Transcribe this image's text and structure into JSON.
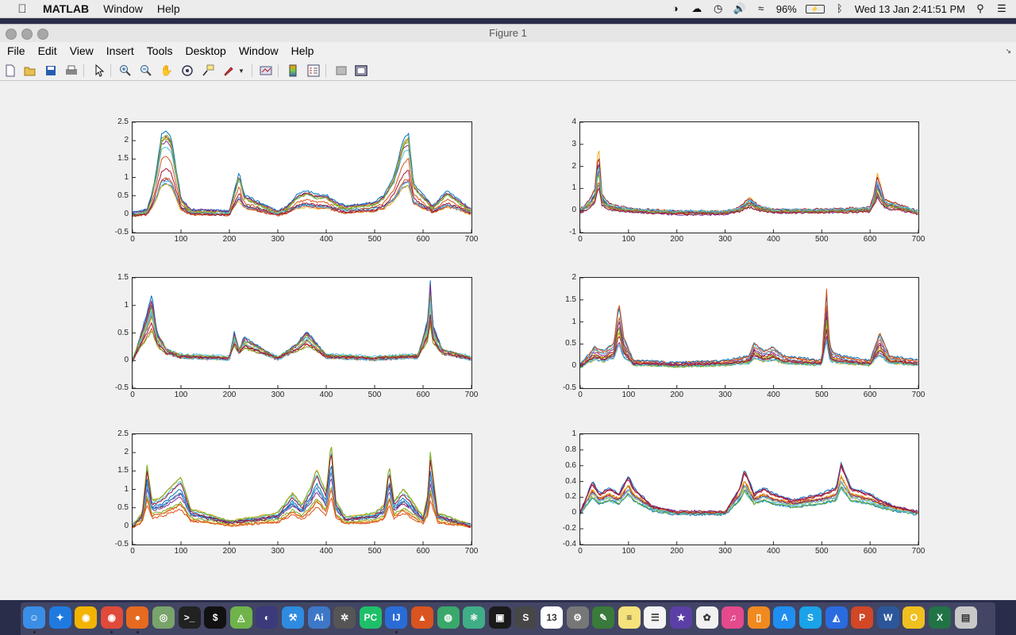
{
  "menubar": {
    "apple_icon": "apple-icon",
    "app_name": "MATLAB",
    "menus": [
      "Window",
      "Help"
    ],
    "status": {
      "battery": "96%",
      "datetime": "Wed 13 Jan  2:41:51 PM"
    }
  },
  "window": {
    "title": "Figure 1",
    "menu": [
      "File",
      "Edit",
      "View",
      "Insert",
      "Tools",
      "Desktop",
      "Window",
      "Help"
    ],
    "toolbar_icons": [
      "new-figure-icon",
      "open-file-icon",
      "save-icon",
      "print-icon",
      "edit-plot-icon",
      "zoom-in-icon",
      "zoom-out-icon",
      "pan-icon",
      "rotate-3d-icon",
      "data-cursor-icon",
      "brush-icon",
      "brush-dropdown-icon",
      "link-plot-icon",
      "insert-colorbar-icon",
      "insert-legend-icon",
      "hide-plot-tools-icon",
      "show-plot-tools-icon"
    ]
  },
  "line_colors": [
    "#0072bd",
    "#d95319",
    "#edb120",
    "#7e2f8e",
    "#77ac30",
    "#4dbeee",
    "#a2142f"
  ],
  "chart_data": [
    {
      "type": "line",
      "x_ticks": [
        "0",
        "100",
        "200",
        "300",
        "400",
        "500",
        "600",
        "700"
      ],
      "xlim": [
        0,
        700
      ],
      "y_ticks": [
        "2.5",
        "2",
        "1.5",
        "1",
        "0.5",
        "0",
        "-0.5"
      ],
      "ylim": [
        -0.5,
        2.5
      ],
      "series": [
        {
          "x": [
            0,
            30,
            40,
            50,
            60,
            70,
            80,
            90,
            100,
            120,
            200,
            220,
            230,
            300,
            320,
            340,
            360,
            380,
            400,
            420,
            440,
            500,
            520,
            540,
            560,
            570,
            580,
            620,
            650,
            700
          ],
          "y": [
            0,
            0.1,
            0.5,
            1.2,
            2.1,
            2.2,
            2.0,
            1.2,
            0.4,
            0.1,
            0.05,
            1.1,
            0.5,
            0.05,
            0.2,
            0.5,
            0.6,
            0.5,
            0.5,
            0.3,
            0.2,
            0.3,
            0.5,
            1.0,
            2.0,
            2.1,
            0.8,
            0.2,
            0.6,
            0.1
          ]
        }
      ]
    },
    {
      "type": "line",
      "x_ticks": [
        "0",
        "100",
        "200",
        "300",
        "400",
        "500",
        "600",
        "700"
      ],
      "xlim": [
        0,
        700
      ],
      "y_ticks": [
        "4",
        "3",
        "2",
        "1",
        "0",
        "-1"
      ],
      "ylim": [
        -1,
        4
      ],
      "series": [
        {
          "x": [
            0,
            20,
            30,
            38,
            45,
            60,
            100,
            200,
            300,
            330,
            350,
            370,
            400,
            500,
            600,
            610,
            615,
            630,
            700
          ],
          "y": [
            0,
            0.5,
            1.0,
            3.0,
            0.8,
            0.3,
            0.05,
            -0.1,
            -0.1,
            0.1,
            0.6,
            0.2,
            0,
            0,
            0.1,
            1.0,
            1.7,
            0.5,
            -0.1
          ]
        }
      ]
    },
    {
      "type": "line",
      "x_ticks": [
        "0",
        "100",
        "200",
        "300",
        "400",
        "500",
        "600",
        "700"
      ],
      "xlim": [
        0,
        700
      ],
      "y_ticks": [
        "1.5",
        "1",
        "0.5",
        "0",
        "-0.5"
      ],
      "ylim": [
        -0.5,
        1.5
      ],
      "series": [
        {
          "x": [
            0,
            15,
            30,
            40,
            50,
            70,
            100,
            200,
            210,
            220,
            230,
            300,
            340,
            360,
            380,
            400,
            500,
            590,
            610,
            615,
            620,
            640,
            700
          ],
          "y": [
            0,
            0.4,
            0.8,
            1.1,
            0.5,
            0.2,
            0.1,
            0.05,
            0.5,
            0.2,
            0.4,
            0.05,
            0.3,
            0.5,
            0.3,
            0.1,
            0.05,
            0.1,
            0.7,
            1.35,
            0.6,
            0.2,
            0.05
          ]
        }
      ]
    },
    {
      "type": "line",
      "x_ticks": [
        "0",
        "100",
        "200",
        "300",
        "400",
        "500",
        "600",
        "700"
      ],
      "xlim": [
        0,
        700
      ],
      "y_ticks": [
        "2",
        "1.5",
        "1",
        "0.5",
        "0",
        "-0.5"
      ],
      "ylim": [
        -0.5,
        2
      ],
      "series": [
        {
          "x": [
            0,
            30,
            50,
            70,
            80,
            90,
            110,
            200,
            300,
            350,
            360,
            380,
            400,
            420,
            500,
            510,
            515,
            520,
            540,
            600,
            620,
            640,
            700
          ],
          "y": [
            0,
            0.4,
            0.3,
            0.5,
            1.35,
            0.6,
            0.1,
            0.05,
            0.1,
            0.2,
            0.5,
            0.3,
            0.4,
            0.2,
            0.1,
            1.6,
            0.6,
            0.3,
            0.2,
            0.1,
            0.7,
            0.2,
            0.1
          ]
        }
      ]
    },
    {
      "type": "line",
      "x_ticks": [
        "0",
        "100",
        "200",
        "300",
        "400",
        "500",
        "600",
        "700"
      ],
      "xlim": [
        0,
        700
      ],
      "y_ticks": [
        "2.5",
        "2",
        "1.5",
        "1",
        "0.5",
        "0",
        "-0.5"
      ],
      "ylim": [
        -0.5,
        2.5
      ],
      "series": [
        {
          "x": [
            0,
            20,
            30,
            40,
            60,
            100,
            120,
            200,
            300,
            330,
            350,
            370,
            380,
            400,
            410,
            420,
            440,
            500,
            520,
            530,
            540,
            560,
            600,
            610,
            615,
            630,
            700
          ],
          "y": [
            0,
            0.3,
            1.5,
            0.6,
            0.7,
            1.2,
            0.4,
            0.1,
            0.3,
            0.8,
            0.5,
            1.0,
            1.4,
            0.8,
            2.1,
            0.6,
            0.2,
            0.3,
            0.5,
            1.5,
            0.6,
            0.9,
            0.2,
            0.8,
            1.8,
            0.3,
            0
          ]
        }
      ]
    },
    {
      "type": "line",
      "x_ticks": [
        "0",
        "100",
        "200",
        "300",
        "400",
        "500",
        "600",
        "700"
      ],
      "xlim": [
        0,
        700
      ],
      "y_ticks": [
        "1",
        "0.8",
        "0.6",
        "0.4",
        "0.2",
        "0",
        "-0.2",
        "-0.4"
      ],
      "ylim": [
        -0.4,
        1
      ],
      "series": [
        {
          "x": [
            0,
            25,
            40,
            60,
            80,
            100,
            110,
            150,
            200,
            300,
            330,
            340,
            360,
            380,
            400,
            440,
            500,
            530,
            540,
            560,
            600,
            620,
            650,
            700
          ],
          "y": [
            0,
            0.5,
            0.3,
            0.4,
            0.3,
            0.6,
            0.4,
            0.1,
            0,
            0,
            0.4,
            0.7,
            0.3,
            0.4,
            0.3,
            0.2,
            0.3,
            0.4,
            0.8,
            0.4,
            0.3,
            0.2,
            0.1,
            0
          ]
        }
      ]
    }
  ],
  "dock": {
    "apps": [
      "finder-icon",
      "safari-icon",
      "chrome-canary-icon",
      "chrome-icon",
      "firefox-icon",
      "network-icon",
      "terminal-icon",
      "iterm-icon",
      "android-studio-icon",
      "eclipse-icon",
      "xcode-icon",
      "illustrator-icon",
      "settings-wheel-icon",
      "pycharm-icon",
      "intellij-icon",
      "matlab-icon",
      "globe-icon",
      "atom-icon",
      "app-box-icon",
      "sublime-icon",
      "calendar-icon",
      "system-preferences-icon",
      "evernote-icon",
      "notes-icon",
      "reminders-icon",
      "imovie-icon",
      "photos-icon",
      "itunes-icon",
      "ibooks-icon",
      "app-store-icon",
      "skype-icon",
      "keynote-icon",
      "powerpoint-icon",
      "word-icon",
      "outlook-icon",
      "excel-icon",
      "trash-icon"
    ],
    "calendar_day": "13",
    "labels": {
      "pycharm": "PC",
      "intellij": "IJ",
      "sublime": "S",
      "skype": "S",
      "powerpoint": "P",
      "word": "W",
      "outlook": "O",
      "excel": "X"
    }
  }
}
